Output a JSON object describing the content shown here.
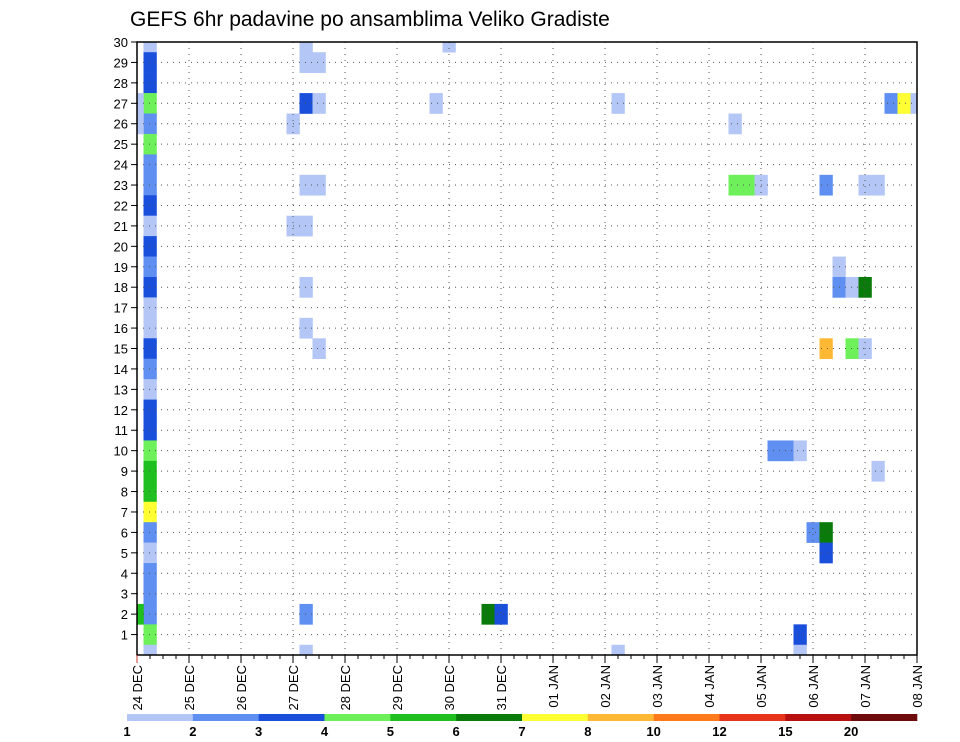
{
  "chart_data": {
    "type": "heatmap",
    "title": "GEFS 6hr padavine po ansamblima Veliko Gradiste",
    "xlabel": "",
    "ylabel": "",
    "x_ticks": [
      "24 DEC",
      "25 DEC",
      "26 DEC",
      "27 DEC",
      "28 DEC",
      "29 DEC",
      "30 DEC",
      "31 DEC",
      "01 JAN",
      "02 JAN",
      "03 JAN",
      "04 JAN",
      "05 JAN",
      "06 JAN",
      "07 JAN",
      "08 JAN"
    ],
    "y_ticks": [
      1,
      2,
      3,
      4,
      5,
      6,
      7,
      8,
      9,
      10,
      11,
      12,
      13,
      14,
      15,
      16,
      17,
      18,
      19,
      20,
      21,
      22,
      23,
      24,
      25,
      26,
      27,
      28,
      29,
      30
    ],
    "xlim": [
      0,
      60
    ],
    "ylim": [
      0,
      30
    ],
    "grid": true,
    "colorbar": {
      "labels": [
        "1",
        "2",
        "3",
        "4",
        "5",
        "6",
        "7",
        "8",
        "10",
        "12",
        "15",
        "20"
      ],
      "colors": [
        "#b3c6f5",
        "#5f8ff0",
        "#1a4fdc",
        "#6ef05a",
        "#1fbf1f",
        "#0a7a0a",
        "#ffff33",
        "#ffb833",
        "#ff7a1a",
        "#e8341a",
        "#b81010",
        "#6e0a0a"
      ]
    },
    "cell_bins": [
      "1-2",
      "2-3",
      "3-4",
      "4-5",
      "5-6",
      "6-7",
      "7-8",
      "8-10",
      "10-12",
      "12-15",
      "15-20",
      "20+"
    ],
    "cells": [
      {
        "t": 1,
        "m": 30,
        "b": 0
      },
      {
        "t": 1,
        "m": 29,
        "b": 2
      },
      {
        "t": 1,
        "m": 28,
        "b": 2
      },
      {
        "t": 1,
        "m": 27,
        "b": 3
      },
      {
        "t": 0,
        "m": 27,
        "b": 0
      },
      {
        "t": 1,
        "m": 26,
        "b": 1
      },
      {
        "t": 0,
        "m": 26,
        "b": 0
      },
      {
        "t": 1,
        "m": 25,
        "b": 3
      },
      {
        "t": 1,
        "m": 24,
        "b": 1
      },
      {
        "t": 1,
        "m": 23,
        "b": 1
      },
      {
        "t": 1,
        "m": 22,
        "b": 2
      },
      {
        "t": 1,
        "m": 21,
        "b": 0
      },
      {
        "t": 1,
        "m": 20,
        "b": 2
      },
      {
        "t": 1,
        "m": 19,
        "b": 1
      },
      {
        "t": 1,
        "m": 18,
        "b": 2
      },
      {
        "t": 1,
        "m": 17,
        "b": 0
      },
      {
        "t": 1,
        "m": 16,
        "b": 0
      },
      {
        "t": 1,
        "m": 15,
        "b": 2
      },
      {
        "t": 1,
        "m": 14,
        "b": 1
      },
      {
        "t": 1,
        "m": 13,
        "b": 0
      },
      {
        "t": 1,
        "m": 12,
        "b": 2
      },
      {
        "t": 1,
        "m": 11,
        "b": 2
      },
      {
        "t": 1,
        "m": 10,
        "b": 3
      },
      {
        "t": 1,
        "m": 9,
        "b": 4
      },
      {
        "t": 1,
        "m": 8,
        "b": 4
      },
      {
        "t": 1,
        "m": 7,
        "b": 6
      },
      {
        "t": 1,
        "m": 6,
        "b": 1
      },
      {
        "t": 1,
        "m": 5,
        "b": 0
      },
      {
        "t": 1,
        "m": 4,
        "b": 1
      },
      {
        "t": 1,
        "m": 3,
        "b": 1
      },
      {
        "t": 1,
        "m": 2,
        "b": 1
      },
      {
        "t": 0,
        "m": 2,
        "b": 4
      },
      {
        "t": 1,
        "m": 1,
        "b": 3
      },
      {
        "t": 1,
        "m": 0,
        "b": 0
      },
      {
        "t": 13,
        "m": 30,
        "b": 0
      },
      {
        "t": 13,
        "m": 29,
        "b": 0
      },
      {
        "t": 14,
        "m": 29,
        "b": 0
      },
      {
        "t": 13,
        "m": 27,
        "b": 2
      },
      {
        "t": 14,
        "m": 27,
        "b": 0
      },
      {
        "t": 12,
        "m": 26,
        "b": 0
      },
      {
        "t": 13,
        "m": 23,
        "b": 0
      },
      {
        "t": 14,
        "m": 23,
        "b": 0
      },
      {
        "t": 12,
        "m": 21,
        "b": 0
      },
      {
        "t": 13,
        "m": 21,
        "b": 0
      },
      {
        "t": 13,
        "m": 18,
        "b": 0
      },
      {
        "t": 13,
        "m": 16,
        "b": 0
      },
      {
        "t": 14,
        "m": 15,
        "b": 0
      },
      {
        "t": 13,
        "m": 2,
        "b": 1
      },
      {
        "t": 13,
        "m": 0,
        "b": 0
      },
      {
        "t": 24,
        "m": 30,
        "b": 0
      },
      {
        "t": 23,
        "m": 27,
        "b": 0
      },
      {
        "t": 27,
        "m": 2,
        "b": 5
      },
      {
        "t": 28,
        "m": 2,
        "b": 2
      },
      {
        "t": 37,
        "m": 27,
        "b": 0
      },
      {
        "t": 37,
        "m": 0,
        "b": 0
      },
      {
        "t": 46,
        "m": 26,
        "b": 0
      },
      {
        "t": 46,
        "m": 23,
        "b": 3
      },
      {
        "t": 47,
        "m": 23,
        "b": 3
      },
      {
        "t": 48,
        "m": 23,
        "b": 0
      },
      {
        "t": 49,
        "m": 10,
        "b": 1
      },
      {
        "t": 50,
        "m": 10,
        "b": 1
      },
      {
        "t": 51,
        "m": 10,
        "b": 0
      },
      {
        "t": 51,
        "m": 1,
        "b": 2
      },
      {
        "t": 51,
        "m": 0,
        "b": 0
      },
      {
        "t": 52,
        "m": 6,
        "b": 1
      },
      {
        "t": 53,
        "m": 6,
        "b": 5
      },
      {
        "t": 53,
        "m": 5,
        "b": 2
      },
      {
        "t": 53,
        "m": 23,
        "b": 1
      },
      {
        "t": 53,
        "m": 15,
        "b": 7
      },
      {
        "t": 54,
        "m": 19,
        "b": 0
      },
      {
        "t": 54,
        "m": 18,
        "b": 1
      },
      {
        "t": 55,
        "m": 18,
        "b": 0
      },
      {
        "t": 56,
        "m": 18,
        "b": 5
      },
      {
        "t": 55,
        "m": 15,
        "b": 3
      },
      {
        "t": 56,
        "m": 15,
        "b": 0
      },
      {
        "t": 56,
        "m": 23,
        "b": 0
      },
      {
        "t": 57,
        "m": 23,
        "b": 0
      },
      {
        "t": 57,
        "m": 9,
        "b": 0
      },
      {
        "t": 58,
        "m": 27,
        "b": 1
      },
      {
        "t": 59,
        "m": 27,
        "b": 6
      },
      {
        "t": 60,
        "m": 27,
        "b": 0
      }
    ]
  }
}
